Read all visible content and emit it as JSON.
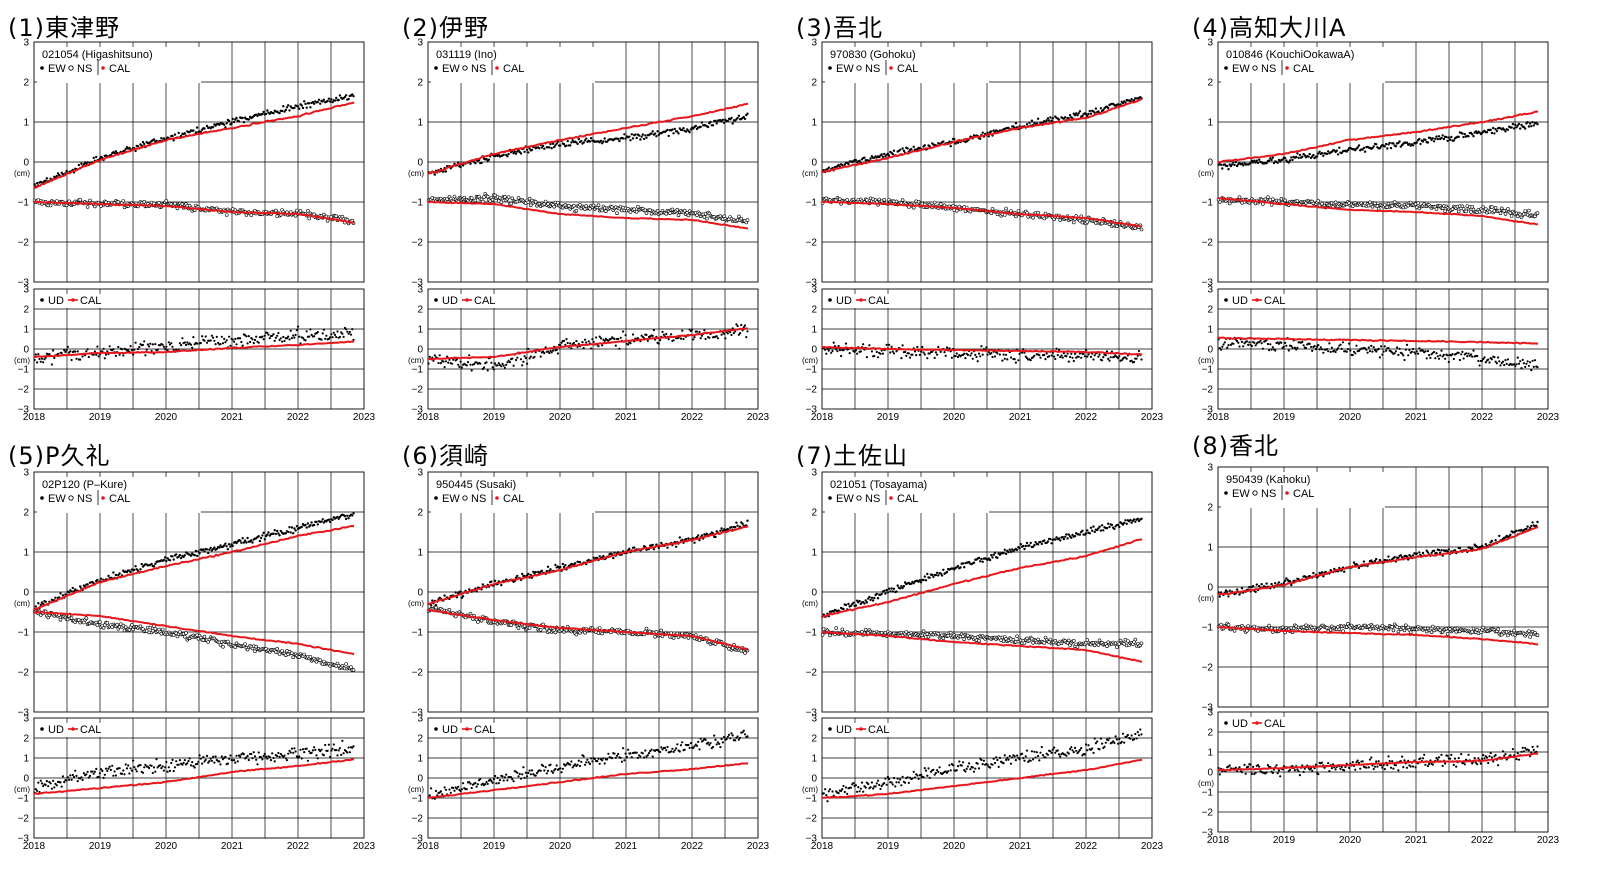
{
  "figure": {
    "x_tick_labels": [
      "2018",
      "2019",
      "2020",
      "2021",
      "2022",
      "2023"
    ],
    "horizontal_unit": "(cm)",
    "vertical_unit": "(cm)",
    "legend_horizontal": {
      "ew": "EW",
      "ns": "NS",
      "cal": "CAL"
    },
    "legend_vertical": {
      "ud": "UD",
      "cal": "CAL"
    },
    "colors": {
      "observed": "#000000",
      "calculated": "#e8161b",
      "grid": "#000000"
    }
  },
  "chart_data": [
    {
      "type": "scatter",
      "title": "(1)東津野",
      "station": "021054 (Higashitsuno)",
      "xlim": [
        2018,
        2023
      ],
      "ylim_horizontal": [
        -3,
        3
      ],
      "ylim_vertical": [
        -3,
        3
      ],
      "series": [
        {
          "name": "EW",
          "x": [
            2018,
            2019,
            2020,
            2021,
            2022,
            2023
          ],
          "values": [
            -0.6,
            0.1,
            0.6,
            1.0,
            1.4,
            1.7
          ]
        },
        {
          "name": "NS",
          "x": [
            2018,
            2019,
            2020,
            2021,
            2022,
            2023
          ],
          "values": [
            -1.0,
            -1.05,
            -1.05,
            -1.25,
            -1.3,
            -1.5
          ]
        },
        {
          "name": "CAL (EW)",
          "x": [
            2018,
            2019,
            2020,
            2021,
            2022,
            2023
          ],
          "values": [
            -0.65,
            0.05,
            0.55,
            0.85,
            1.15,
            1.55
          ]
        },
        {
          "name": "CAL (NS)",
          "x": [
            2018,
            2019,
            2020,
            2021,
            2022,
            2023
          ],
          "values": [
            -1.0,
            -1.05,
            -1.1,
            -1.25,
            -1.3,
            -1.55
          ]
        },
        {
          "name": "UD",
          "x": [
            2018,
            2019,
            2020,
            2021,
            2022,
            2023
          ],
          "values": [
            -0.4,
            -0.2,
            0.1,
            0.5,
            0.7,
            0.7
          ]
        },
        {
          "name": "CAL (UD)",
          "x": [
            2018,
            2019,
            2020,
            2021,
            2022,
            2023
          ],
          "values": [
            -0.4,
            -0.2,
            -0.15,
            0.05,
            0.2,
            0.4
          ]
        }
      ]
    },
    {
      "type": "scatter",
      "title": "(2)伊野",
      "station": "031119 (Ino)",
      "xlim": [
        2018,
        2023
      ],
      "ylim_horizontal": [
        -3,
        3
      ],
      "ylim_vertical": [
        -3,
        3
      ],
      "series": [
        {
          "name": "EW",
          "x": [
            2018,
            2019,
            2020,
            2021,
            2022,
            2023
          ],
          "values": [
            -0.3,
            0.15,
            0.45,
            0.6,
            0.85,
            1.2
          ]
        },
        {
          "name": "NS",
          "x": [
            2018,
            2019,
            2020,
            2021,
            2022,
            2023
          ],
          "values": [
            -0.95,
            -0.9,
            -1.1,
            -1.2,
            -1.3,
            -1.5
          ]
        },
        {
          "name": "CAL (EW)",
          "x": [
            2018,
            2019,
            2020,
            2021,
            2022,
            2023
          ],
          "values": [
            -0.3,
            0.2,
            0.55,
            0.85,
            1.15,
            1.5
          ]
        },
        {
          "name": "CAL (NS)",
          "x": [
            2018,
            2019,
            2020,
            2021,
            2022,
            2023
          ],
          "values": [
            -1.0,
            -1.05,
            -1.3,
            -1.4,
            -1.45,
            -1.7
          ]
        },
        {
          "name": "UD",
          "x": [
            2018,
            2019,
            2020,
            2021,
            2022,
            2023
          ],
          "values": [
            -0.5,
            -0.8,
            0.1,
            0.5,
            0.7,
            1.0
          ]
        },
        {
          "name": "CAL (UD)",
          "x": [
            2018,
            2019,
            2020,
            2021,
            2022,
            2023
          ],
          "values": [
            -0.5,
            -0.4,
            0.1,
            0.4,
            0.7,
            1.1
          ]
        }
      ]
    },
    {
      "type": "scatter",
      "title": "(3)吾北",
      "station": "970830 (Gohoku)",
      "xlim": [
        2018,
        2023
      ],
      "ylim_horizontal": [
        -3,
        3
      ],
      "ylim_vertical": [
        -3,
        3
      ],
      "series": [
        {
          "name": "EW",
          "x": [
            2018,
            2019,
            2020,
            2021,
            2022,
            2023
          ],
          "values": [
            -0.2,
            0.2,
            0.5,
            0.9,
            1.2,
            1.7
          ]
        },
        {
          "name": "NS",
          "x": [
            2018,
            2019,
            2020,
            2021,
            2022,
            2023
          ],
          "values": [
            -0.95,
            -1.0,
            -1.15,
            -1.3,
            -1.45,
            -1.7
          ]
        },
        {
          "name": "CAL (EW)",
          "x": [
            2018,
            2019,
            2020,
            2021,
            2022,
            2023
          ],
          "values": [
            -0.25,
            0.1,
            0.5,
            0.85,
            1.1,
            1.65
          ]
        },
        {
          "name": "CAL (NS)",
          "x": [
            2018,
            2019,
            2020,
            2021,
            2022,
            2023
          ],
          "values": [
            -1.0,
            -1.05,
            -1.15,
            -1.3,
            -1.4,
            -1.65
          ]
        },
        {
          "name": "UD",
          "x": [
            2018,
            2019,
            2020,
            2021,
            2022,
            2023
          ],
          "values": [
            0.0,
            -0.1,
            -0.2,
            -0.3,
            -0.3,
            -0.4
          ]
        },
        {
          "name": "CAL (UD)",
          "x": [
            2018,
            2019,
            2020,
            2021,
            2022,
            2023
          ],
          "values": [
            0.1,
            0.0,
            -0.05,
            -0.1,
            -0.15,
            -0.3
          ]
        }
      ]
    },
    {
      "type": "scatter",
      "title": "(4)高知大川A",
      "station": "010846 (KouchiOokawaA)",
      "xlim": [
        2018,
        2023
      ],
      "ylim_horizontal": [
        -3,
        3
      ],
      "ylim_vertical": [
        -3,
        3
      ],
      "series": [
        {
          "name": "EW",
          "x": [
            2018,
            2019,
            2020,
            2021,
            2022,
            2023
          ],
          "values": [
            -0.1,
            0.05,
            0.3,
            0.5,
            0.75,
            1.0
          ]
        },
        {
          "name": "NS",
          "x": [
            2018,
            2019,
            2020,
            2021,
            2022,
            2023
          ],
          "values": [
            -0.95,
            -1.0,
            -1.05,
            -1.1,
            -1.2,
            -1.35
          ]
        },
        {
          "name": "CAL (EW)",
          "x": [
            2018,
            2019,
            2020,
            2021,
            2022,
            2023
          ],
          "values": [
            0.0,
            0.2,
            0.55,
            0.75,
            1.0,
            1.3
          ]
        },
        {
          "name": "CAL (NS)",
          "x": [
            2018,
            2019,
            2020,
            2021,
            2022,
            2023
          ],
          "values": [
            -0.9,
            -1.05,
            -1.2,
            -1.25,
            -1.35,
            -1.6
          ]
        },
        {
          "name": "UD",
          "x": [
            2018,
            2019,
            2020,
            2021,
            2022,
            2023
          ],
          "values": [
            0.3,
            0.2,
            0.0,
            -0.2,
            -0.5,
            -0.8
          ]
        },
        {
          "name": "CAL (UD)",
          "x": [
            2018,
            2019,
            2020,
            2021,
            2022,
            2023
          ],
          "values": [
            0.55,
            0.5,
            0.45,
            0.4,
            0.35,
            0.25
          ]
        }
      ]
    },
    {
      "type": "scatter",
      "title": "(5)P久礼",
      "station": "02P120 (P–Kure)",
      "xlim": [
        2018,
        2023
      ],
      "ylim_horizontal": [
        -3,
        3
      ],
      "ylim_vertical": [
        -3,
        3
      ],
      "series": [
        {
          "name": "EW",
          "x": [
            2018,
            2019,
            2020,
            2021,
            2022,
            2023
          ],
          "values": [
            -0.4,
            0.3,
            0.8,
            1.2,
            1.6,
            2.0
          ]
        },
        {
          "name": "NS",
          "x": [
            2018,
            2019,
            2020,
            2021,
            2022,
            2023
          ],
          "values": [
            -0.5,
            -0.8,
            -1.0,
            -1.3,
            -1.6,
            -2.0
          ]
        },
        {
          "name": "CAL (EW)",
          "x": [
            2018,
            2019,
            2020,
            2021,
            2022,
            2023
          ],
          "values": [
            -0.45,
            0.25,
            0.65,
            1.0,
            1.4,
            1.7
          ]
        },
        {
          "name": "CAL (NS)",
          "x": [
            2018,
            2019,
            2020,
            2021,
            2022,
            2023
          ],
          "values": [
            -0.5,
            -0.6,
            -0.85,
            -1.1,
            -1.3,
            -1.6
          ]
        },
        {
          "name": "UD",
          "x": [
            2018,
            2019,
            2020,
            2021,
            2022,
            2023
          ],
          "values": [
            -0.5,
            0.3,
            0.6,
            1.0,
            1.2,
            1.6
          ]
        },
        {
          "name": "CAL (UD)",
          "x": [
            2018,
            2019,
            2020,
            2021,
            2022,
            2023
          ],
          "values": [
            -0.8,
            -0.5,
            -0.2,
            0.3,
            0.6,
            1.0
          ]
        }
      ]
    },
    {
      "type": "scatter",
      "title": "(6)須崎",
      "station": "950445 (Susaki)",
      "xlim": [
        2018,
        2023
      ],
      "ylim_horizontal": [
        -3,
        3
      ],
      "ylim_vertical": [
        -3,
        3
      ],
      "series": [
        {
          "name": "EW",
          "x": [
            2018,
            2019,
            2020,
            2021,
            2022,
            2023
          ],
          "values": [
            -0.3,
            0.2,
            0.6,
            1.0,
            1.3,
            1.8
          ]
        },
        {
          "name": "NS",
          "x": [
            2018,
            2019,
            2020,
            2021,
            2022,
            2023
          ],
          "values": [
            -0.4,
            -0.75,
            -0.95,
            -1.0,
            -1.1,
            -1.55
          ]
        },
        {
          "name": "CAL (EW)",
          "x": [
            2018,
            2019,
            2020,
            2021,
            2022,
            2023
          ],
          "values": [
            -0.3,
            0.2,
            0.55,
            1.0,
            1.3,
            1.7
          ]
        },
        {
          "name": "CAL (NS)",
          "x": [
            2018,
            2019,
            2020,
            2021,
            2022,
            2023
          ],
          "values": [
            -0.45,
            -0.7,
            -0.9,
            -1.0,
            -1.1,
            -1.5
          ]
        },
        {
          "name": "UD",
          "x": [
            2018,
            2019,
            2020,
            2021,
            2022,
            2023
          ],
          "values": [
            -0.9,
            -0.1,
            0.6,
            1.2,
            1.6,
            2.3
          ]
        },
        {
          "name": "CAL (UD)",
          "x": [
            2018,
            2019,
            2020,
            2021,
            2022,
            2023
          ],
          "values": [
            -1.0,
            -0.6,
            -0.2,
            0.2,
            0.45,
            0.8
          ]
        }
      ]
    },
    {
      "type": "scatter",
      "title": "(7)土佐山",
      "station": "021051 (Tosayama)",
      "xlim": [
        2018,
        2023
      ],
      "ylim_horizontal": [
        -3,
        3
      ],
      "ylim_vertical": [
        -3,
        3
      ],
      "series": [
        {
          "name": "EW",
          "x": [
            2018,
            2019,
            2020,
            2021,
            2022,
            2023
          ],
          "values": [
            -0.6,
            0.0,
            0.6,
            1.1,
            1.5,
            1.9
          ]
        },
        {
          "name": "NS",
          "x": [
            2018,
            2019,
            2020,
            2021,
            2022,
            2023
          ],
          "values": [
            -1.0,
            -1.05,
            -1.1,
            -1.2,
            -1.3,
            -1.3
          ]
        },
        {
          "name": "CAL (EW)",
          "x": [
            2018,
            2019,
            2020,
            2021,
            2022,
            2023
          ],
          "values": [
            -0.6,
            -0.25,
            0.2,
            0.6,
            0.9,
            1.4
          ]
        },
        {
          "name": "CAL (NS)",
          "x": [
            2018,
            2019,
            2020,
            2021,
            2022,
            2023
          ],
          "values": [
            -1.0,
            -1.1,
            -1.25,
            -1.35,
            -1.45,
            -1.8
          ]
        },
        {
          "name": "UD",
          "x": [
            2018,
            2019,
            2020,
            2021,
            2022,
            2023
          ],
          "values": [
            -0.8,
            -0.3,
            0.5,
            1.0,
            1.5,
            2.4
          ]
        },
        {
          "name": "CAL (UD)",
          "x": [
            2018,
            2019,
            2020,
            2021,
            2022,
            2023
          ],
          "values": [
            -1.0,
            -0.8,
            -0.4,
            0.0,
            0.4,
            1.0
          ]
        }
      ]
    },
    {
      "type": "scatter",
      "title": "(8)香北",
      "station": "950439 (Kahoku)",
      "xlim": [
        2018,
        2023
      ],
      "ylim_horizontal": [
        -3,
        3
      ],
      "ylim_vertical": [
        -3,
        3
      ],
      "series": [
        {
          "name": "EW",
          "x": [
            2018,
            2019,
            2020,
            2021,
            2022,
            2023
          ],
          "values": [
            -0.2,
            0.1,
            0.5,
            0.8,
            1.0,
            1.7
          ]
        },
        {
          "name": "NS",
          "x": [
            2018,
            2019,
            2020,
            2021,
            2022,
            2023
          ],
          "values": [
            -1.0,
            -1.05,
            -1.0,
            -1.05,
            -1.1,
            -1.2
          ]
        },
        {
          "name": "CAL (EW)",
          "x": [
            2018,
            2019,
            2020,
            2021,
            2022,
            2023
          ],
          "values": [
            -0.2,
            0.05,
            0.5,
            0.75,
            0.95,
            1.6
          ]
        },
        {
          "name": "CAL (NS)",
          "x": [
            2018,
            2019,
            2020,
            2021,
            2022,
            2023
          ],
          "values": [
            -1.0,
            -1.1,
            -1.15,
            -1.2,
            -1.3,
            -1.45
          ]
        },
        {
          "name": "UD",
          "x": [
            2018,
            2019,
            2020,
            2021,
            2022,
            2023
          ],
          "values": [
            0.2,
            0.1,
            0.3,
            0.5,
            0.6,
            1.2
          ]
        },
        {
          "name": "CAL (UD)",
          "x": [
            2018,
            2019,
            2020,
            2021,
            2022,
            2023
          ],
          "values": [
            0.1,
            0.2,
            0.35,
            0.5,
            0.55,
            1.0
          ]
        }
      ]
    }
  ]
}
